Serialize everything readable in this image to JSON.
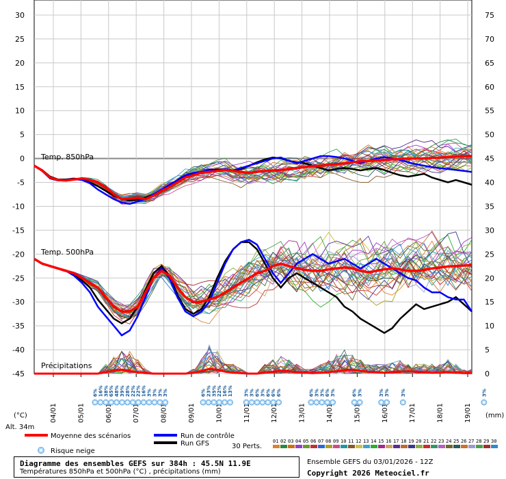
{
  "chart_data": {
    "type": "line",
    "left_axis": {
      "min": -45,
      "max": 30,
      "step": 5,
      "unit": "(°C)"
    },
    "right_axis": {
      "min": 0,
      "max": 75,
      "step": 5,
      "unit": "(mm)"
    },
    "x_categories": [
      "04/01",
      "05/01",
      "06/01",
      "07/01",
      "08/01",
      "09/01",
      "10/01",
      "11/01",
      "12/01",
      "13/01",
      "14/01",
      "15/01",
      "16/01",
      "17/01",
      "18/01",
      "19/01"
    ],
    "panel_labels": {
      "t850": "Temp. 850hPa",
      "t500": "Temp. 500hPa",
      "precip": "Précipitations"
    },
    "altitude": "Alt. 34m",
    "snow_risk": {
      "label": "Risque neige",
      "groups": [
        {
          "start_step": 7,
          "values": [
            "6%",
            "16%",
            "38%",
            "65%",
            "48%",
            "39%",
            "28%",
            "22%",
            "22%",
            "16%",
            "3%",
            "3%",
            "3%",
            "3%"
          ]
        },
        {
          "start_step": 27,
          "values": [
            "6%",
            "23%",
            "35%",
            "22%",
            "16%",
            "13%"
          ]
        },
        {
          "start_step": 35,
          "values": [
            "3%",
            "3%",
            "6%",
            "3%",
            "6%",
            "6%",
            "6%"
          ]
        },
        {
          "start_step": 47,
          "values": [
            "6%",
            "3%",
            "3%",
            "6%",
            "3%"
          ]
        },
        {
          "start_step": 55,
          "values": [
            "6%",
            "3%"
          ]
        },
        {
          "start_step": 60,
          "values": [
            "3%",
            "3%"
          ]
        },
        {
          "start_step": 64,
          "values": [
            "3%"
          ]
        },
        {
          "start_step": 79,
          "values": [
            "3%"
          ]
        }
      ]
    },
    "series_t850_mean": [
      -1.5,
      -2.5,
      -4,
      -4.5,
      -4.6,
      -4.4,
      -4.2,
      -4.5,
      -5,
      -6,
      -7.5,
      -8.5,
      -8.4,
      -8.2,
      -8.5,
      -7.8,
      -6.8,
      -6,
      -5,
      -4,
      -3.5,
      -3,
      -2.8,
      -2.6,
      -2.4,
      -2.6,
      -2.8,
      -3,
      -2.8,
      -2.6,
      -2.5,
      -2.4,
      -2.2,
      -2,
      -1.8,
      -1.6,
      -1.5,
      -1.3,
      -1.2,
      -1,
      -0.8,
      -0.6,
      -0.5,
      -0.4,
      -0.3,
      -0.2,
      -0.1,
      0,
      0,
      0,
      0.1,
      0.2,
      0.3,
      0.4,
      0.5,
      0.5
    ],
    "series_t500_mean": [
      -21,
      -22,
      -22.5,
      -23,
      -23.5,
      -24,
      -25,
      -26,
      -27,
      -29,
      -31,
      -32,
      -32,
      -31,
      -28,
      -25,
      -23.5,
      -24.5,
      -27,
      -29,
      -30,
      -30,
      -29.5,
      -29,
      -28,
      -27,
      -26,
      -25,
      -24,
      -23.5,
      -22.5,
      -22,
      -22.5,
      -23,
      -23.3,
      -23.5,
      -23.5,
      -23.2,
      -23,
      -22.8,
      -23,
      -23.5,
      -23.8,
      -23.5,
      -23.2,
      -23,
      -23.2,
      -23.5,
      -23.5,
      -23.3,
      -23,
      -22.8,
      -22.6,
      -22.5,
      -22.4,
      -22.3
    ],
    "series_control_t850": [
      -1.5,
      -2.6,
      -4.2,
      -4.6,
      -4.5,
      -4.3,
      -4.5,
      -5.2,
      -6.5,
      -7.5,
      -8.5,
      -9.2,
      -9.5,
      -9,
      -8.5,
      -7.5,
      -6.5,
      -5.5,
      -4.5,
      -3.5,
      -3,
      -2.8,
      -2.5,
      -2.6,
      -2.2,
      -2.5,
      -2,
      -1.5,
      -1,
      -0.5,
      0,
      0.2,
      -0.5,
      -1,
      -0.5,
      0,
      0.5,
      0.5,
      0.3,
      0,
      -0.5,
      -1,
      -0.5,
      0,
      0.3,
      0,
      -0.3,
      -0.8,
      -1.2,
      -1.5,
      -1.8,
      -2,
      -2.2,
      -2.4,
      -2.6,
      -2.8
    ],
    "series_gfs_t850": [
      -1.5,
      -2.4,
      -3.8,
      -4.4,
      -4.4,
      -4.2,
      -4.4,
      -5,
      -5.8,
      -6.8,
      -7.8,
      -8.4,
      -8.8,
      -8.6,
      -8.2,
      -7.5,
      -6.8,
      -5.8,
      -4.8,
      -3.8,
      -3.2,
      -2.8,
      -2.4,
      -2.3,
      -2.4,
      -2.6,
      -2.2,
      -1.5,
      -0.8,
      -0.2,
      0.2,
      0,
      -0.5,
      -0.8,
      -1,
      -1.5,
      -2,
      -2.5,
      -2.2,
      -2,
      -2.2,
      -2.5,
      -2.2,
      -2,
      -2.4,
      -3,
      -3.5,
      -3.8,
      -3.5,
      -3.2,
      -4,
      -4.5,
      -5,
      -4.5,
      -5,
      -5.5
    ],
    "series_control_t500": [
      -21,
      -22,
      -22.5,
      -23,
      -23.5,
      -24.5,
      -26,
      -28,
      -31,
      -33,
      -35,
      -37,
      -36,
      -33,
      -29,
      -25,
      -23,
      -25,
      -29,
      -32,
      -33,
      -32,
      -30,
      -26,
      -22,
      -19,
      -17.5,
      -17,
      -18,
      -21,
      -24,
      -26,
      -24,
      -22,
      -21,
      -20,
      -21,
      -22,
      -21.5,
      -21,
      -22,
      -23,
      -22,
      -21,
      -22,
      -23,
      -24,
      -25,
      -25.5,
      -27,
      -28,
      -28,
      -29,
      -29.5,
      -29.5,
      -32
    ],
    "series_gfs_t500": [
      -21,
      -22,
      -22.5,
      -23,
      -23.5,
      -24.3,
      -25.5,
      -27,
      -29.5,
      -31.5,
      -33.5,
      -34.5,
      -33.5,
      -31,
      -27.5,
      -24,
      -22.5,
      -24.5,
      -28.5,
      -31.5,
      -32.5,
      -31.5,
      -29,
      -25,
      -21.5,
      -19,
      -17.5,
      -17.5,
      -19,
      -22,
      -25,
      -27,
      -25,
      -24,
      -25,
      -26,
      -27,
      -28,
      -29,
      -31,
      -32,
      -33.5,
      -34.5,
      -35.5,
      -36.5,
      -35.5,
      -33.5,
      -32,
      -30.5,
      -31.5,
      -31,
      -30.5,
      -30,
      -29,
      -30.5,
      -32
    ],
    "precip_mean_mm": [
      0,
      0,
      0,
      0,
      0,
      0,
      0,
      0,
      0,
      0.3,
      0.6,
      0.8,
      0.5,
      0.3,
      0.1,
      0,
      0,
      0,
      0,
      0,
      0.2,
      0.5,
      1,
      0.8,
      0.4,
      0.2,
      0.1,
      0,
      0,
      0.2,
      0.4,
      0.6,
      0.5,
      0.3,
      0.2,
      0.1,
      0.2,
      0.3,
      0.5,
      0.7,
      0.8,
      0.6,
      0.4,
      0.3,
      0.2,
      0.3,
      0.4,
      0.5,
      0.4,
      0.3,
      0.2,
      0.2,
      0.3,
      0.2,
      0.1,
      0.1
    ],
    "precip_max_mm": [
      0,
      0,
      0,
      0,
      0,
      0,
      0,
      0,
      0,
      2,
      4,
      6,
      5,
      3,
      1,
      0,
      0,
      0,
      0,
      0,
      1,
      3,
      6,
      5,
      3,
      2,
      1,
      0,
      0,
      2,
      3,
      4,
      3,
      2,
      1,
      1,
      2,
      3,
      4,
      5,
      4,
      3,
      2,
      2,
      2,
      3,
      3,
      2,
      2,
      2,
      2,
      2,
      3,
      2,
      1,
      1
    ]
  },
  "legend": {
    "mean": "Moyenne des scénarios",
    "control": "Run de contrôle",
    "gfs": "Run GFS",
    "perts_label": "30 Perts.",
    "perts": [
      "01",
      "02",
      "03",
      "04",
      "05",
      "06",
      "07",
      "08",
      "09",
      "10",
      "11",
      "12",
      "13",
      "14",
      "15",
      "16",
      "17",
      "18",
      "19",
      "20",
      "21",
      "22",
      "23",
      "24",
      "25",
      "26",
      "27",
      "28",
      "29",
      "30"
    ],
    "pert_colors": [
      "#e0802a",
      "#2a8a3a",
      "#d07010",
      "#9a3ad0",
      "#6a9a2a",
      "#c03030",
      "#2a6ad0",
      "#b0a020",
      "#d04a8a",
      "#1a9aa0",
      "#8a5a2a",
      "#d0c040",
      "#40a0d0",
      "#2ab02a",
      "#a02a8a",
      "#d0a060",
      "#5a2a9a",
      "#c06a2a",
      "#3a3a8a",
      "#8ab040",
      "#d02a2a",
      "#2a9a6a",
      "#b060c0",
      "#6a6a2a",
      "#2a5a5a",
      "#d0702a",
      "#9a9ad0",
      "#4aa04a",
      "#aa2a2a",
      "#2a8ad0"
    ],
    "colors": {
      "mean": "#ff0000",
      "control": "#0000ff",
      "gfs": "#000000"
    }
  },
  "footer": {
    "title": "Diagramme des ensembles GEFS sur 384h : 45.5N 11.9E",
    "subtitle": "Températures 850hPa et 500hPa (°C) , précipitations (mm)",
    "run": "Ensemble GEFS du 03/01/2026 - 12Z",
    "copyright": "Copyright 2026 Meteociel.fr"
  }
}
